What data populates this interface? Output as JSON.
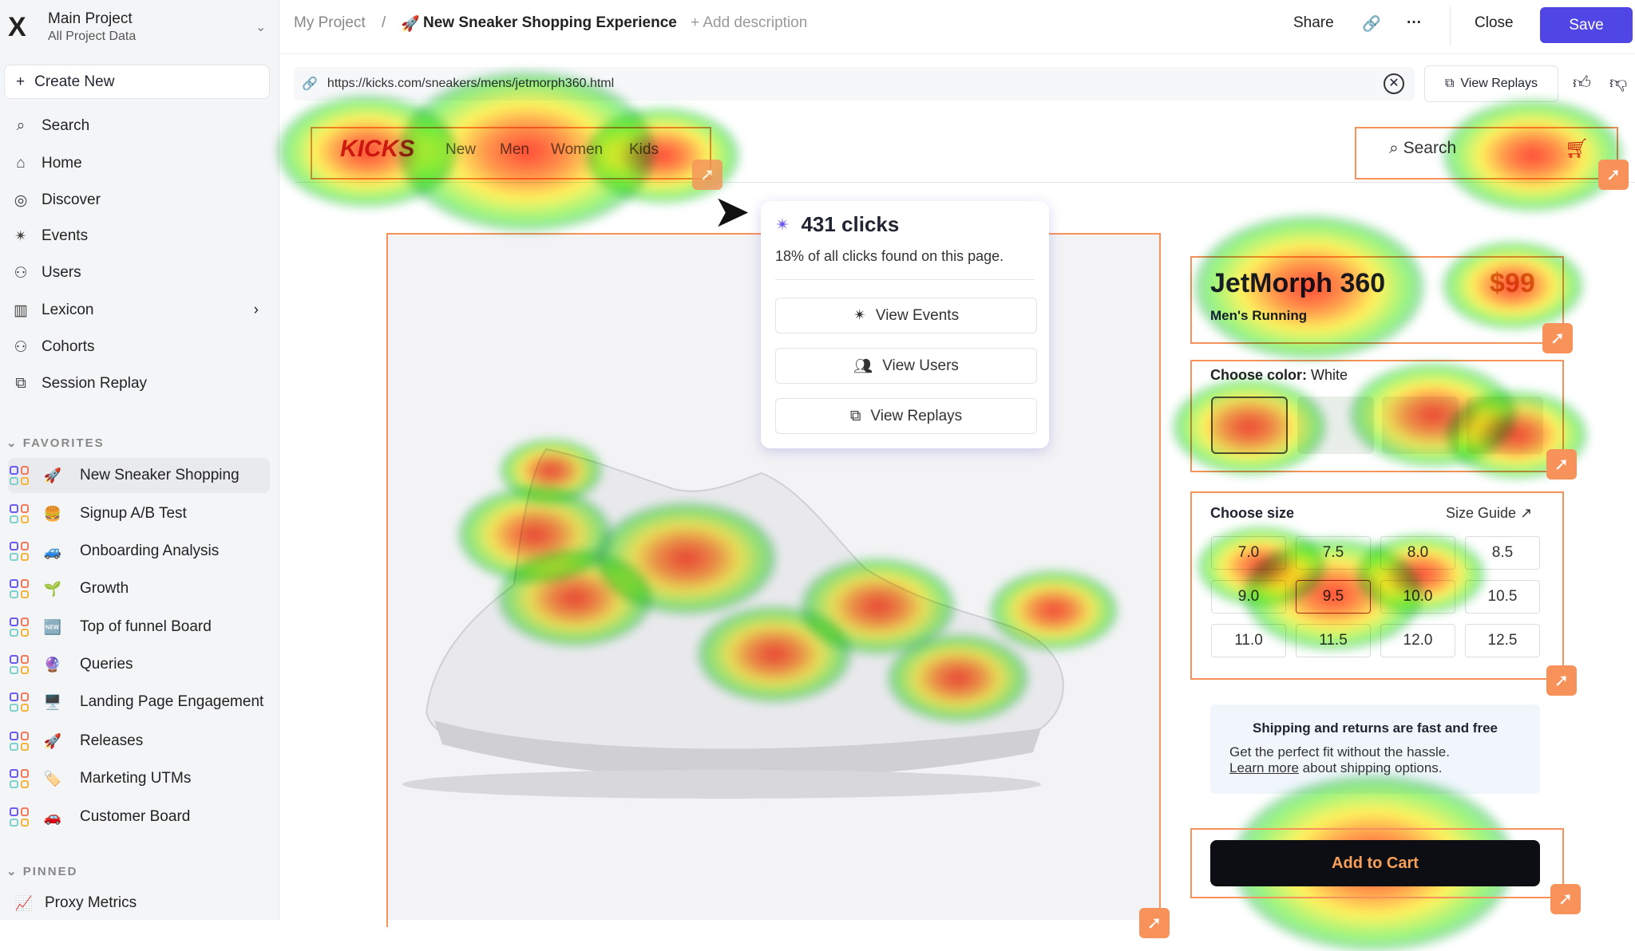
{
  "sidebar": {
    "project_name": "Main Project",
    "project_sub": "All Project Data",
    "create_new": "Create New",
    "nav": [
      {
        "label": "Search",
        "icon": "search-icon"
      },
      {
        "label": "Home",
        "icon": "home-icon"
      },
      {
        "label": "Discover",
        "icon": "compass-icon"
      },
      {
        "label": "Events",
        "icon": "click-icon"
      },
      {
        "label": "Users",
        "icon": "users-icon"
      },
      {
        "label": "Lexicon",
        "icon": "book-icon"
      },
      {
        "label": "Cohorts",
        "icon": "users-icon"
      },
      {
        "label": "Session Replay",
        "icon": "replay-icon"
      }
    ],
    "favorites_label": "FAVORITES",
    "favorites": [
      {
        "label": "New Sneaker Shopping",
        "emoji": "🚀"
      },
      {
        "label": "Signup A/B Test",
        "emoji": "🍔"
      },
      {
        "label": "Onboarding Analysis",
        "emoji": "🚙"
      },
      {
        "label": "Growth",
        "emoji": "🌱"
      },
      {
        "label": "Top of funnel Board",
        "emoji": "🆕"
      },
      {
        "label": "Queries",
        "emoji": "🔮"
      },
      {
        "label": "Landing Page Engagement",
        "emoji": "🖥️"
      },
      {
        "label": "Releases",
        "emoji": "🚀"
      },
      {
        "label": "Marketing UTMs",
        "emoji": "🏷️"
      },
      {
        "label": "Customer Board",
        "emoji": "🚗"
      }
    ],
    "pinned_label": "PINNED",
    "pinned": [
      {
        "label": "Proxy Metrics",
        "emoji": "📈"
      }
    ]
  },
  "header": {
    "crumb_root": "My Project",
    "separator": "/",
    "title_emoji": "🚀",
    "title": "New Sneaker Shopping Experience",
    "add_description": "+ Add description",
    "share": "Share",
    "close": "Close",
    "save": "Save"
  },
  "toolbar": {
    "url": "https://kicks.com/sneakers/mens/jetmorph360.html",
    "view_replays": "View Replays"
  },
  "site": {
    "logo": "KICKS",
    "nav": [
      "New",
      "Men",
      "Women",
      "Kids"
    ],
    "search": "Search",
    "product_name": "JetMorph 360",
    "price": "$99",
    "category": "Men's Running",
    "color_label": "Choose color:",
    "color_value": "White",
    "size_label": "Choose size",
    "size_guide": "Size Guide",
    "sizes": [
      "7.0",
      "7.5",
      "8.0",
      "8.5",
      "9.0",
      "9.5",
      "10.0",
      "10.5",
      "11.0",
      "11.5",
      "12.0",
      "12.5"
    ],
    "selected_size": "9.5",
    "shipping_title": "Shipping and returns are fast and free",
    "shipping_text": "Get the perfect fit without the hassle.",
    "learn_more": "Learn more",
    "shipping_text2": "about shipping options.",
    "add_to_cart": "Add to Cart"
  },
  "popup": {
    "clicks": "431 clicks",
    "subtitle": "18% of all clicks found on this page.",
    "view_events": "View Events",
    "view_users": "View Users",
    "view_replays": "View Replays"
  },
  "colors": {
    "accent": "#4f46e5",
    "highlight": "#f6925a"
  }
}
